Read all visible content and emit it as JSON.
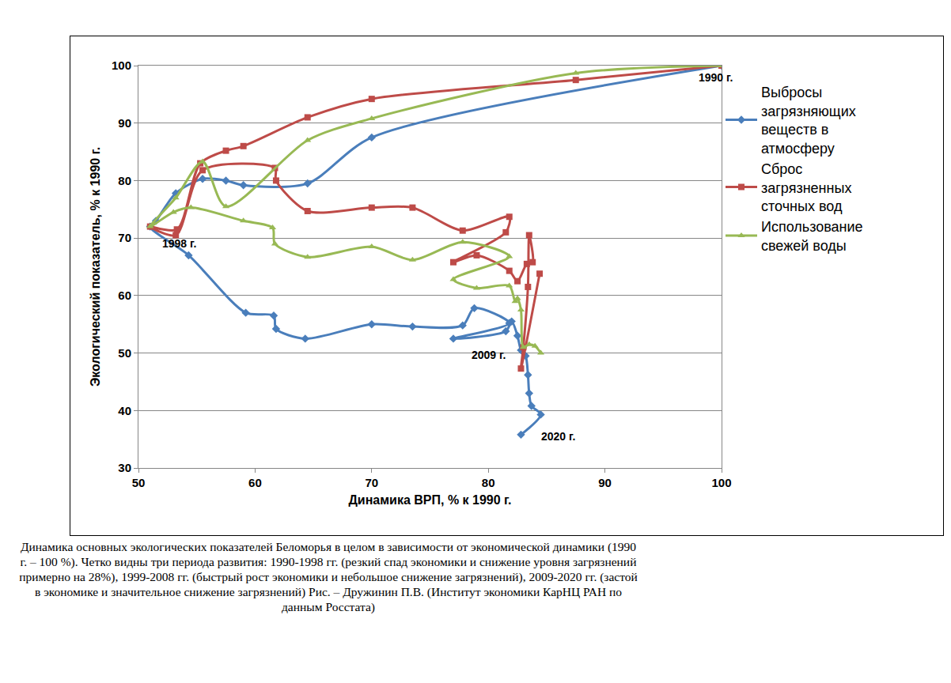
{
  "chart_data": {
    "type": "line",
    "xlabel": "Динамика ВРП, % к 1990 г.",
    "ylabel": "Экологический показатель, % к 1990 г.",
    "xlim": [
      50,
      100
    ],
    "xticks": [
      50,
      60,
      70,
      80,
      90,
      100
    ],
    "ylim": [
      30,
      100
    ],
    "yticks": [
      30,
      40,
      50,
      60,
      70,
      80,
      90,
      100
    ],
    "grid": true,
    "legend": "right",
    "line_style": "spline",
    "series": [
      {
        "name": "Выбросы загрязняющих веществ в атмосферу",
        "color": "#4a7ebb",
        "marker": "diamond",
        "x": [
          100,
          70,
          64.5,
          59,
          57.5,
          55.5,
          53.2,
          51.5,
          51,
          54.3,
          59.2,
          61.6,
          61.8,
          64.3,
          70,
          73.5,
          77.8,
          78.8,
          81.8,
          77,
          81.5,
          82,
          82.5,
          82.8,
          83.2,
          83.4,
          83.5,
          83.7,
          84.5,
          82.8
        ],
        "values": [
          100,
          87.5,
          79.5,
          79.2,
          80,
          80.3,
          77.8,
          73,
          72,
          67,
          57,
          56.5,
          54.2,
          52.5,
          55,
          54.6,
          54.8,
          57.8,
          55.2,
          52.5,
          53.8,
          55.5,
          53,
          50.5,
          49.5,
          46.2,
          43,
          40.8,
          39.3,
          35.8
        ]
      },
      {
        "name": "Сброс загрязненных сточных вод",
        "color": "#be4b48",
        "marker": "square",
        "x": [
          100,
          87.5,
          70,
          64.5,
          59,
          57.5,
          55.3,
          53.3,
          51,
          53.2,
          55.5,
          61.7,
          61.8,
          64.5,
          70,
          73.5,
          77.8,
          81.8,
          81.5,
          77,
          79,
          81.8,
          82.5,
          83.3,
          83.8,
          83.5,
          83.4,
          83,
          82.8,
          84.4
        ],
        "values": [
          100,
          97.5,
          94.2,
          91,
          86,
          85.2,
          83,
          71.5,
          72,
          70.5,
          81.8,
          82.2,
          80,
          74.7,
          75.3,
          75.3,
          71.3,
          73.7,
          71,
          65.8,
          67,
          64.3,
          62.5,
          65.5,
          65.8,
          70.5,
          61.5,
          51,
          47.3,
          63.8
        ]
      },
      {
        "name": "Использование свежей воды",
        "color": "#98b954",
        "marker": "triangle-up",
        "x": [
          100,
          87.5,
          70,
          64.5,
          57.5,
          55.5,
          53.2,
          51,
          53,
          54.5,
          59,
          61.5,
          61.7,
          64.5,
          70,
          73.5,
          77.8,
          81.8,
          77,
          79,
          81.8,
          82.3,
          82.5,
          82.8,
          83,
          83.5,
          84,
          84.5
        ],
        "values": [
          100,
          98.7,
          90.8,
          87,
          75.5,
          83.3,
          77,
          72,
          74.5,
          75.3,
          73,
          71.8,
          69,
          66.7,
          68.5,
          66.2,
          69.3,
          66.8,
          62.8,
          61.3,
          61.7,
          59,
          59.5,
          57.5,
          51,
          51.5,
          51.2,
          50
        ]
      }
    ],
    "annotations": [
      {
        "text": "1990 г.",
        "x": 99.5,
        "y": 98
      },
      {
        "text": "1998 г.",
        "x": 53.5,
        "y": 69
      },
      {
        "text": "2009 г.",
        "x": 80,
        "y": 49.7
      },
      {
        "text": "2020 г.",
        "x": 86,
        "y": 35.5
      }
    ]
  },
  "caption": "Динамика основных экологических показателей Беломорья в целом в зависимости от экономической динамики (1990 г. – 100 %). Четко видны три периода развития: 1990-1998 гг. (резкий спад экономики и снижение уровня загрязнений примерно на 28%), 1999-2008 гг. (быстрый рост экономики и небольшое снижение загрязнений), 2009-2020 гг. (застой в экономике и значительное снижение загрязнений) Рис. – Дружинин П.В. (Институт экономики КарНЦ РАН по данным Росстата)"
}
